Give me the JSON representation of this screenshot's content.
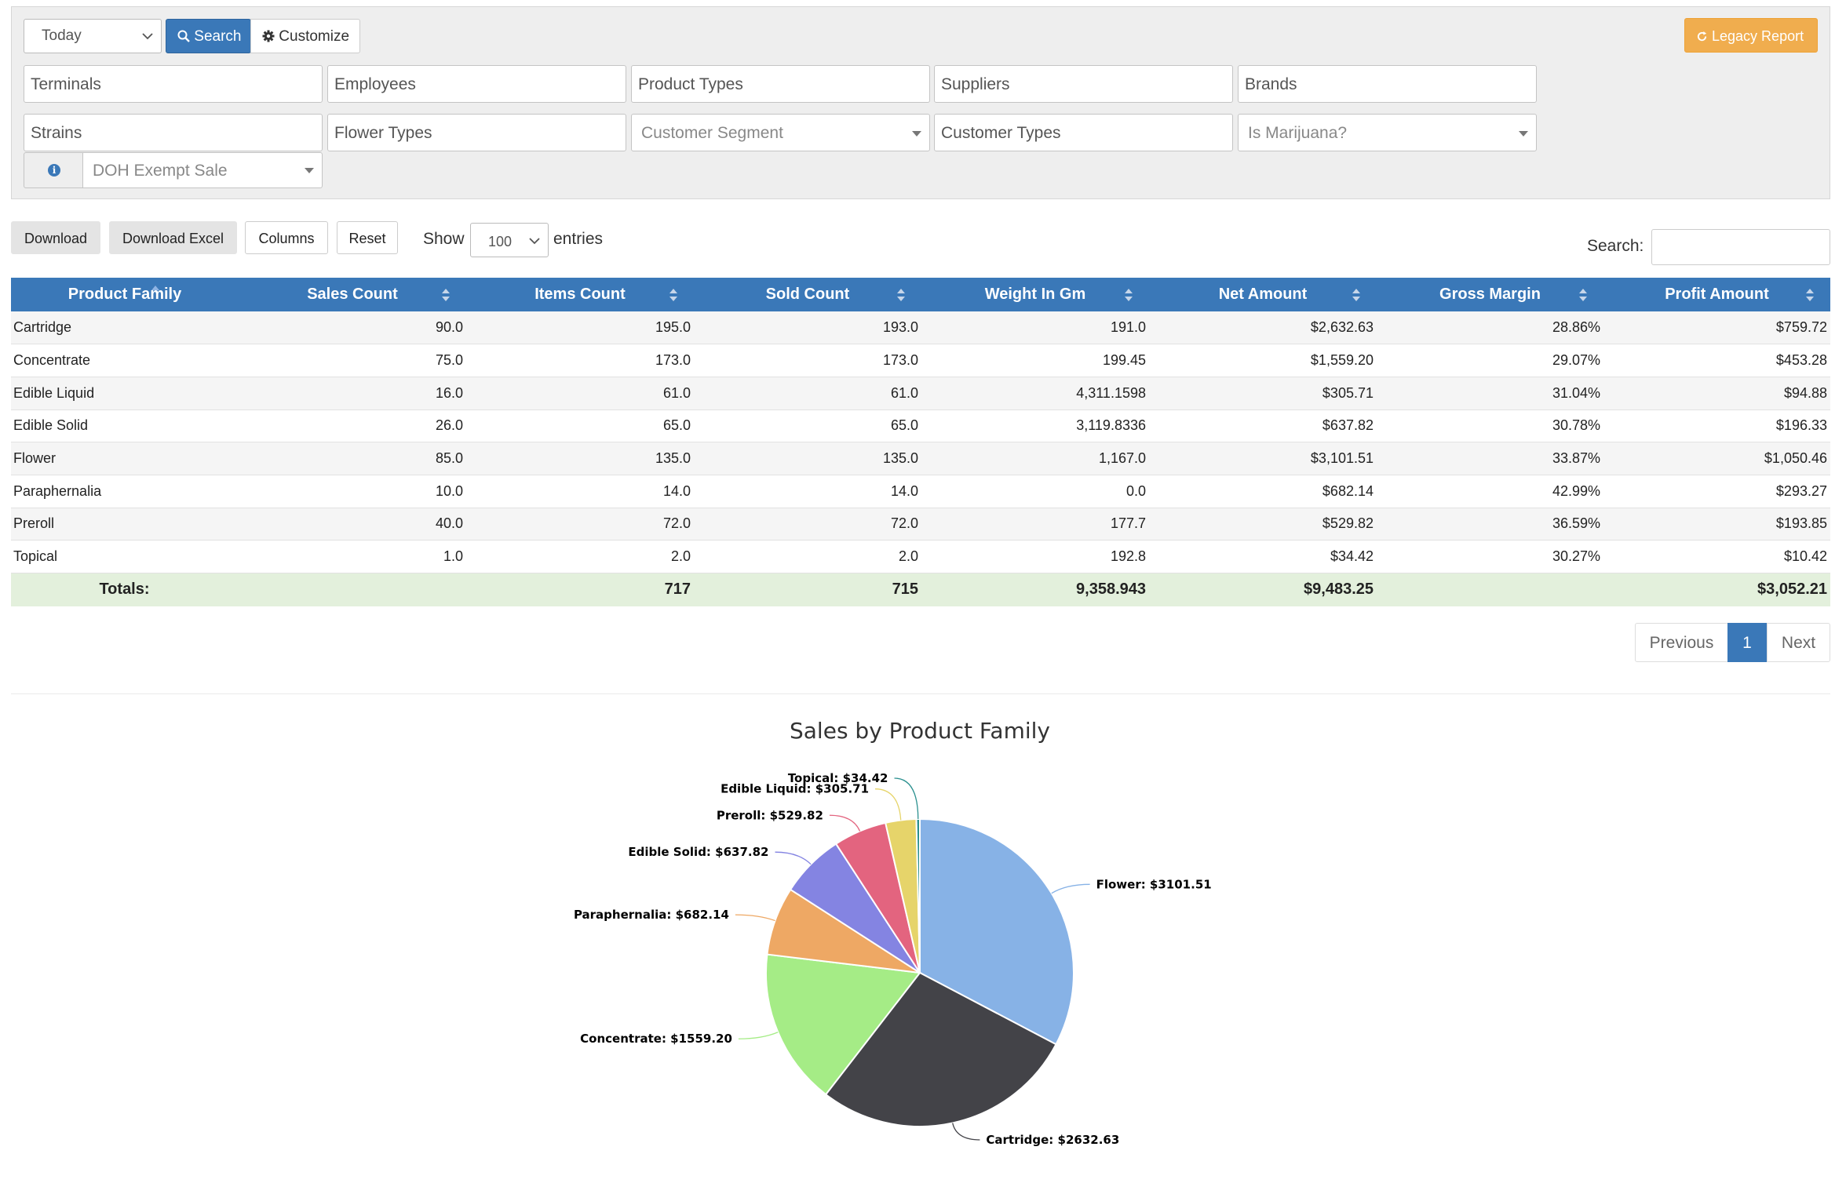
{
  "filters": {
    "date_range": "Today",
    "search_label": "Search",
    "customize_label": "Customize",
    "legacy_report_label": "Legacy Report",
    "row1": [
      "Terminals",
      "Employees",
      "Product Types",
      "Suppliers",
      "Brands"
    ],
    "row2": {
      "strains": "Strains",
      "flower_types": "Flower Types",
      "customer_segment": "Customer Segment",
      "customer_types": "Customer Types",
      "is_marijuana": "Is Marijuana?"
    },
    "doh_exempt": "DOH Exempt Sale"
  },
  "toolbar": {
    "download_label": "Download",
    "download_excel_label": "Download Excel",
    "columns_label": "Columns",
    "reset_label": "Reset",
    "show_label": "Show",
    "page_size": "100",
    "entries_label": "entries",
    "search_label": "Search:",
    "search_value": ""
  },
  "table": {
    "columns": [
      "Product Family",
      "Sales Count",
      "Items Count",
      "Sold Count",
      "Weight In Gm",
      "Net Amount",
      "Gross Margin",
      "Profit Amount"
    ],
    "rows": [
      [
        "Cartridge",
        "90.0",
        "195.0",
        "193.0",
        "191.0",
        "$2,632.63",
        "28.86%",
        "$759.72"
      ],
      [
        "Concentrate",
        "75.0",
        "173.0",
        "173.0",
        "199.45",
        "$1,559.20",
        "29.07%",
        "$453.28"
      ],
      [
        "Edible Liquid",
        "16.0",
        "61.0",
        "61.0",
        "4,311.1598",
        "$305.71",
        "31.04%",
        "$94.88"
      ],
      [
        "Edible Solid",
        "26.0",
        "65.0",
        "65.0",
        "3,119.8336",
        "$637.82",
        "30.78%",
        "$196.33"
      ],
      [
        "Flower",
        "85.0",
        "135.0",
        "135.0",
        "1,167.0",
        "$3,101.51",
        "33.87%",
        "$1,050.46"
      ],
      [
        "Paraphernalia",
        "10.0",
        "14.0",
        "14.0",
        "0.0",
        "$682.14",
        "42.99%",
        "$293.27"
      ],
      [
        "Preroll",
        "40.0",
        "72.0",
        "72.0",
        "177.7",
        "$529.82",
        "36.59%",
        "$193.85"
      ],
      [
        "Topical",
        "1.0",
        "2.0",
        "2.0",
        "192.8",
        "$34.42",
        "30.27%",
        "$10.42"
      ]
    ],
    "totals": {
      "label": "Totals:",
      "sales_count": "",
      "items_count": "717",
      "sold_count": "715",
      "weight": "9,358.943",
      "net_amount": "$9,483.25",
      "gross_margin": "",
      "profit_amount": "$3,052.21"
    }
  },
  "pagination": {
    "previous_label": "Previous",
    "current_page": "1",
    "next_label": "Next"
  },
  "chart_data": {
    "type": "pie",
    "title": "Sales by Product Family",
    "slices": [
      {
        "label": "Flower: $3101.51",
        "name": "Flower",
        "value": 3101.51,
        "color": "#87b2e6"
      },
      {
        "label": "Cartridge: $2632.63",
        "name": "Cartridge",
        "value": 2632.63,
        "color": "#434348"
      },
      {
        "label": "Concentrate: $1559.20",
        "name": "Concentrate",
        "value": 1559.2,
        "color": "#a5ec86"
      },
      {
        "label": "Paraphernalia: $682.14",
        "name": "Paraphernalia",
        "value": 682.14,
        "color": "#eea864"
      },
      {
        "label": "Edible Solid: $637.82",
        "name": "Edible Solid",
        "value": 637.82,
        "color": "#8484e2"
      },
      {
        "label": "Preroll: $529.82",
        "name": "Preroll",
        "value": 529.82,
        "color": "#e3647f"
      },
      {
        "label": "Edible Liquid: $305.71",
        "name": "Edible Liquid",
        "value": 305.71,
        "color": "#e6d46a"
      },
      {
        "label": "Topical: $34.42",
        "name": "Topical",
        "value": 34.42,
        "color": "#2b908f"
      }
    ]
  },
  "colors": {
    "primary": "#3a78b8",
    "warning": "#f0ad4e",
    "totals_row": "#e3f0dc"
  }
}
